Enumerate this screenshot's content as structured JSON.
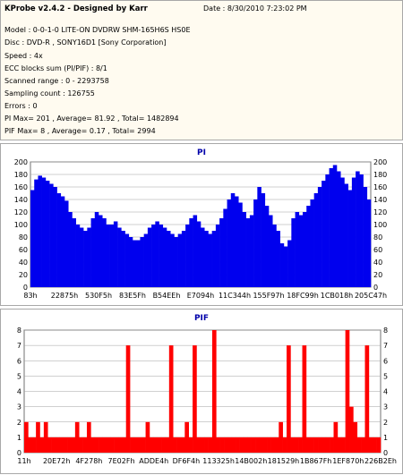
{
  "window": {
    "title": "KProbe v2.4.2 - Designed by Karr",
    "date": "Date : 8/30/2010 7:23:02 PM"
  },
  "info": {
    "lines": [
      "Model : 0-0-1-0 LITE-ON DVDRW SHM-165H6S HS0E",
      "Disc : DVD-R , SONY16D1 [Sony Corporation]",
      "Speed : 4x",
      "ECC blocks sum (PI/PIF) : 8/1",
      "Scanned range : 0 - 2293758",
      "Sampling count : 126755",
      "Errors : 0",
      "PI Max= 201 , Average= 81.92 , Total= 1482894",
      "PIF Max= 8 , Average= 0.17 , Total= 2994"
    ]
  },
  "colors": {
    "pi_bars": "#0000ee",
    "pif_bars": "#ff0000",
    "title_text": "#0000aa",
    "grid": "#a0a0a0",
    "plot_bg": "#ffffff",
    "panel_bg": "#fffbf0"
  },
  "chart_data": [
    {
      "type": "bar",
      "title": "PI",
      "xlabel": "",
      "ylabel": "",
      "ylim": [
        0,
        200
      ],
      "yticks": [
        0,
        20,
        40,
        60,
        80,
        100,
        120,
        140,
        160,
        180,
        200
      ],
      "x_tick_labels": [
        "83h",
        "22875h",
        "530F5h",
        "83E5Fh",
        "B54EEh",
        "E7094h",
        "11C344h",
        "155F97h",
        "18FC99h",
        "1CB018h",
        "205C47h"
      ],
      "grid": "horizontal",
      "series": [
        {
          "values": [
            155,
            172,
            178,
            175,
            170,
            165,
            160,
            150,
            145,
            138,
            120,
            110,
            100,
            95,
            90,
            95,
            110,
            120,
            115,
            110,
            100,
            100,
            105,
            95,
            90,
            85,
            80,
            75,
            75,
            80,
            85,
            95,
            100,
            105,
            100,
            95,
            90,
            85,
            80,
            85,
            90,
            100,
            110,
            115,
            105,
            95,
            90,
            85,
            90,
            100,
            110,
            125,
            140,
            150,
            145,
            135,
            120,
            110,
            115,
            140,
            160,
            150,
            130,
            115,
            100,
            90,
            70,
            65,
            75,
            110,
            120,
            115,
            120,
            130,
            140,
            150,
            160,
            170,
            180,
            190,
            195,
            185,
            175,
            165,
            155,
            175,
            185,
            180,
            160,
            140
          ]
        }
      ]
    },
    {
      "type": "bar",
      "title": "PIF",
      "xlabel": "",
      "ylabel": "",
      "ylim": [
        0,
        8
      ],
      "yticks": [
        0,
        1,
        2,
        3,
        4,
        5,
        6,
        7,
        8
      ],
      "x_tick_labels": [
        "11h",
        "20E72h",
        "4F278h",
        "7E02Fh",
        "ADDE4h",
        "DF6F4h",
        "113325h",
        "14B002h",
        "181529h",
        "1B867Fh",
        "1EF870h",
        "226B2Eh"
      ],
      "grid": "horizontal",
      "series": [
        {
          "values": [
            2,
            1,
            1,
            2,
            1,
            2,
            1,
            1,
            1,
            1,
            1,
            1,
            1,
            2,
            1,
            1,
            2,
            1,
            1,
            1,
            1,
            1,
            1,
            1,
            1,
            1,
            7,
            1,
            1,
            1,
            1,
            2,
            1,
            1,
            1,
            1,
            1,
            7,
            1,
            1,
            1,
            2,
            1,
            7,
            1,
            1,
            1,
            1,
            8,
            1,
            1,
            1,
            1,
            1,
            1,
            1,
            1,
            1,
            1,
            1,
            1,
            1,
            1,
            1,
            1,
            2,
            1,
            7,
            1,
            1,
            1,
            7,
            1,
            1,
            1,
            1,
            1,
            1,
            1,
            2,
            1,
            1,
            8,
            3,
            2,
            1,
            1,
            7,
            1,
            1,
            1
          ]
        }
      ]
    }
  ]
}
